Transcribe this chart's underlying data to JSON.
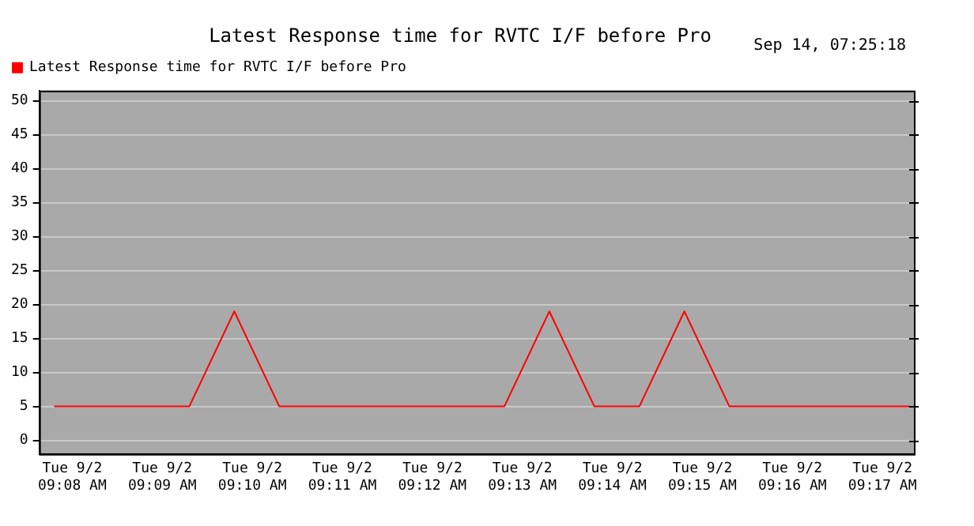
{
  "chart_data": {
    "type": "line",
    "title": "Latest Response time for RVTC I/F before Pro",
    "annotations": [
      "Sep 14, 07:25:18"
    ],
    "x": [
      "--09-02T09:07:48",
      "--09-02T09:09:18",
      "--09-02T09:09:48",
      "--09-02T09:10:18",
      "--09-02T09:12:48",
      "--09-02T09:13:18",
      "--09-02T09:13:48",
      "--09-02T09:14:18",
      "--09-02T09:14:48",
      "--09-02T09:15:18",
      "--09-02T09:17:18"
    ],
    "series": [
      {
        "name": "Latest Response time for RVTC I/F before Pro",
        "color": "#ff0000",
        "values": [
          5,
          5,
          19,
          5,
          5,
          19,
          5,
          5,
          19,
          5,
          5
        ]
      }
    ],
    "xlim": [
      "--09-02T09:07:38",
      "--09-02T09:17:21"
    ],
    "xticks": [
      {
        "value": "--09-02T09:08",
        "label": "Tue 9/2\n09:08 AM"
      },
      {
        "value": "--09-02T09:09",
        "label": "Tue 9/2\n09:09 AM"
      },
      {
        "value": "--09-02T09:10",
        "label": "Tue 9/2\n09:10 AM"
      },
      {
        "value": "--09-02T09:11",
        "label": "Tue 9/2\n09:11 AM"
      },
      {
        "value": "--09-02T09:12",
        "label": "Tue 9/2\n09:12 AM"
      },
      {
        "value": "--09-02T09:13",
        "label": "Tue 9/2\n09:13 AM"
      },
      {
        "value": "--09-02T09:14",
        "label": "Tue 9/2\n09:14 AM"
      },
      {
        "value": "--09-02T09:15",
        "label": "Tue 9/2\n09:15 AM"
      },
      {
        "value": "--09-02T09:16",
        "label": "Tue 9/2\n09:16 AM"
      },
      {
        "value": "--09-02T09:17",
        "label": "Tue 9/2\n09:17 AM"
      }
    ],
    "ylim": [
      -2,
      51.5
    ],
    "yticks": [
      0,
      5,
      10,
      15,
      20,
      25,
      30,
      35,
      40,
      45,
      50
    ],
    "grid": "y",
    "legend": "top left",
    "marker": "none",
    "line_style": "solid"
  }
}
